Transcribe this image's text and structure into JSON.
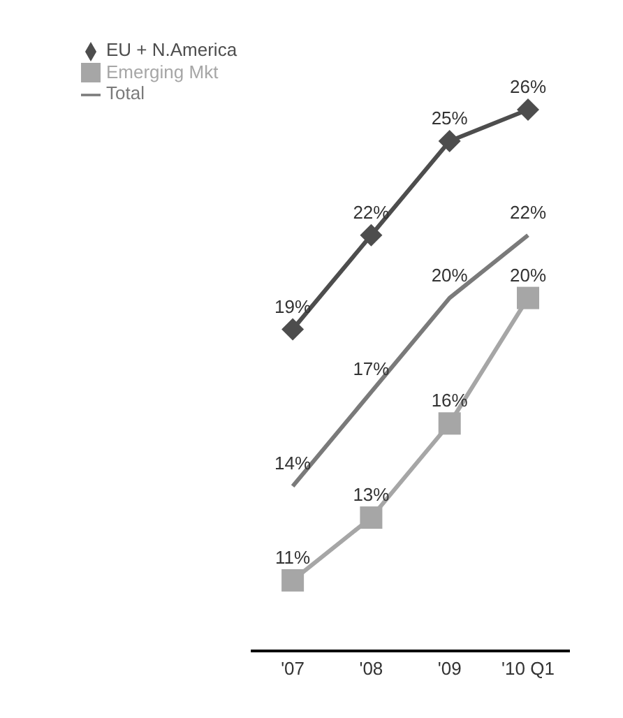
{
  "chart_data": {
    "type": "line",
    "categories": [
      "'07",
      "'08",
      "'09",
      "'10 Q1"
    ],
    "series": [
      {
        "name": "EU + N.America",
        "color": "#4d4d4d",
        "marker": "diamond",
        "values": [
          19,
          22,
          25,
          26
        ],
        "value_labels": [
          "19%",
          "22%",
          "25%",
          "26%"
        ]
      },
      {
        "name": "Emerging Mkt",
        "color": "#a6a6a6",
        "marker": "square",
        "values": [
          11,
          13,
          16,
          20
        ],
        "value_labels": [
          "11%",
          "13%",
          "16%",
          "20%"
        ]
      },
      {
        "name": "Total",
        "color": "#7a7a7a",
        "marker": "none",
        "values": [
          14,
          17,
          20,
          22
        ],
        "value_labels": [
          "14%",
          "17%",
          "20%",
          "22%"
        ]
      }
    ],
    "legend": "top left",
    "grid": false
  }
}
